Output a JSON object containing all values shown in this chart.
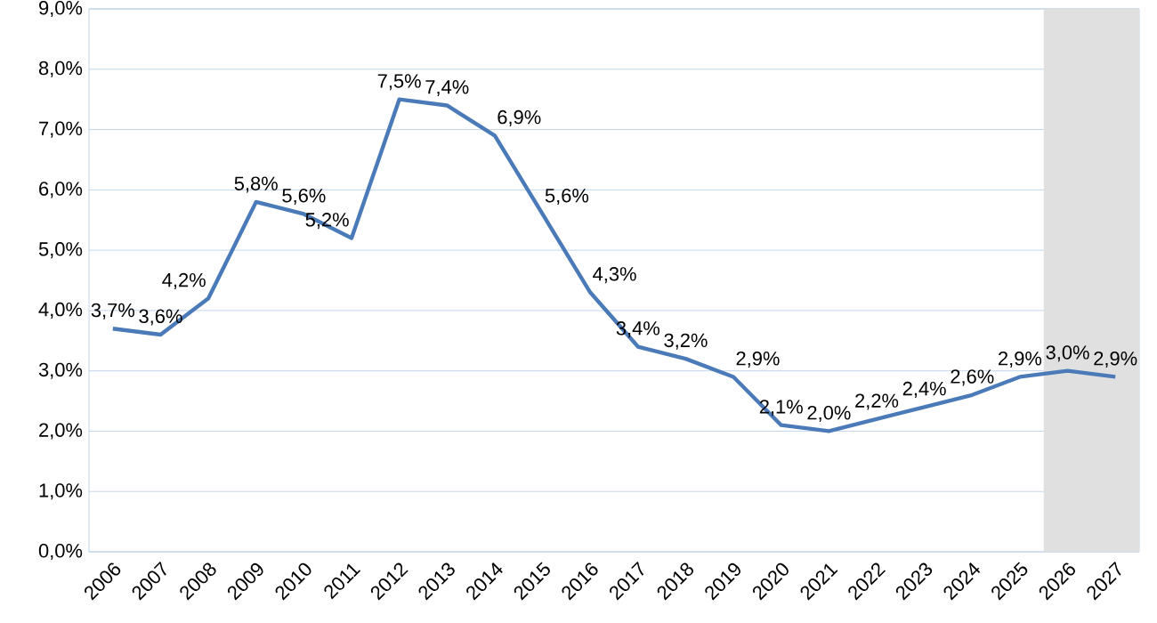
{
  "chart_data": {
    "type": "line",
    "categories": [
      "2006",
      "2007",
      "2008",
      "2009",
      "2010",
      "2011",
      "2012",
      "2013",
      "2014",
      "2015",
      "2016",
      "2017",
      "2018",
      "2019",
      "2020",
      "2021",
      "2022",
      "2023",
      "2024",
      "2025",
      "2026",
      "2027"
    ],
    "series": [
      {
        "color": "#4a7ab8",
        "values": [
          3.7,
          3.6,
          4.2,
          5.8,
          5.6,
          5.2,
          7.5,
          7.4,
          6.9,
          5.6,
          4.3,
          3.4,
          3.2,
          2.9,
          2.1,
          2.0,
          2.2,
          2.4,
          2.6,
          2.9,
          3.0,
          2.9
        ],
        "value_labels": [
          "3,7%",
          "3,6%",
          "4,2%",
          "5,8%",
          "5,6%",
          "5,2%",
          "7,5%",
          "7,4%",
          "6,9%",
          "5,6%",
          "4,3%",
          "3,4%",
          "3,2%",
          "2,9%",
          "2,1%",
          "2,0%",
          "2,2%",
          "2,4%",
          "2,6%",
          "2,9%",
          "3,0%",
          "2,9%"
        ]
      }
    ],
    "ylim": [
      0,
      9
    ],
    "yticks": [
      {
        "value": 0,
        "label": "0,0%"
      },
      {
        "value": 1,
        "label": "1,0%"
      },
      {
        "value": 2,
        "label": "2,0%"
      },
      {
        "value": 3,
        "label": "3,0%"
      },
      {
        "value": 4,
        "label": "4,0%"
      },
      {
        "value": 5,
        "label": "5,0%"
      },
      {
        "value": 6,
        "label": "6,0%"
      },
      {
        "value": 7,
        "label": "7,0%"
      },
      {
        "value": 8,
        "label": "8,0%"
      },
      {
        "value": 9,
        "label": "9,0%"
      }
    ],
    "grid": "y",
    "line_style": "solid",
    "marker": "none",
    "bands": [
      {
        "axis": "x",
        "from": "2026",
        "to": "2027",
        "color": "#e0e0e0"
      }
    ]
  }
}
